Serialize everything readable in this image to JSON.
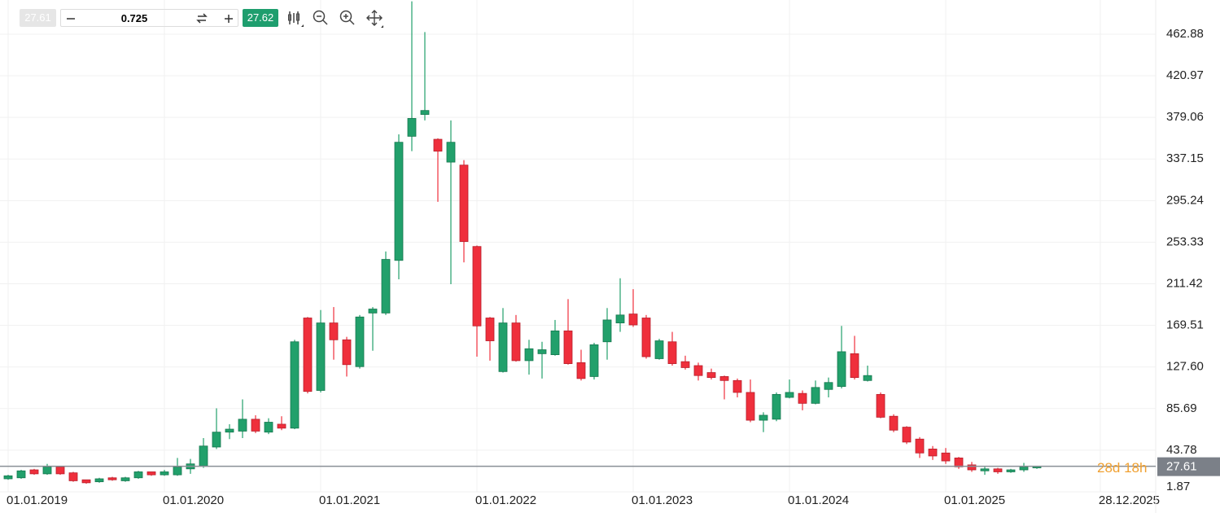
{
  "chart_data": {
    "type": "candlestick",
    "x": [
      "01.01.2019",
      "01.02.2019",
      "01.03.2019",
      "01.04.2019",
      "01.05.2019",
      "01.06.2019",
      "01.07.2019",
      "01.08.2019",
      "01.09.2019",
      "01.10.2019",
      "01.11.2019",
      "01.12.2019",
      "01.01.2020",
      "01.02.2020",
      "01.03.2020",
      "01.04.2020",
      "01.05.2020",
      "01.06.2020",
      "01.07.2020",
      "01.08.2020",
      "01.09.2020",
      "01.10.2020",
      "01.11.2020",
      "01.12.2020",
      "01.01.2021",
      "01.02.2021",
      "01.03.2021",
      "01.04.2021",
      "01.05.2021",
      "01.06.2021",
      "01.07.2021",
      "01.08.2021",
      "01.09.2021",
      "01.10.2021",
      "01.11.2021",
      "01.12.2021",
      "01.01.2022",
      "01.02.2022",
      "01.03.2022",
      "01.04.2022",
      "01.05.2022",
      "01.06.2022",
      "01.07.2022",
      "01.08.2022",
      "01.09.2022",
      "01.10.2022",
      "01.11.2022",
      "01.12.2022",
      "01.01.2023",
      "01.02.2023",
      "01.03.2023",
      "01.04.2023",
      "01.05.2023",
      "01.06.2023",
      "01.07.2023",
      "01.08.2023",
      "01.09.2023",
      "01.10.2023",
      "01.11.2023",
      "01.12.2023",
      "01.01.2024",
      "01.02.2024",
      "01.03.2024",
      "01.04.2024",
      "01.05.2024",
      "01.06.2024",
      "01.07.2024",
      "01.08.2024",
      "01.09.2024",
      "01.10.2024",
      "01.11.2024",
      "01.12.2024",
      "01.01.2025",
      "01.02.2025",
      "01.03.2025",
      "01.04.2025",
      "01.05.2025",
      "01.06.2025",
      "01.07.2025",
      "01.08.2025"
    ],
    "open": [
      15,
      16,
      24,
      20,
      27,
      21,
      14,
      12,
      16,
      13,
      16,
      22,
      19,
      19,
      25,
      28,
      47,
      62,
      63,
      75,
      62,
      70,
      66,
      177,
      104,
      172,
      155,
      128,
      182,
      182,
      235,
      360,
      382,
      357,
      334,
      331,
      249,
      177,
      123,
      172,
      134,
      141,
      140,
      164,
      132,
      118,
      153,
      172,
      181,
      177,
      136,
      153,
      133,
      129,
      122,
      118,
      114,
      102,
      74,
      75,
      97,
      101,
      91,
      105,
      108,
      141,
      114,
      100,
      78,
      67,
      55,
      45,
      41,
      36,
      29,
      23,
      25,
      22,
      24,
      26
    ],
    "high": [
      19,
      24,
      25,
      30,
      28,
      22,
      14,
      16,
      17,
      17,
      23,
      22,
      24,
      36,
      35,
      56,
      86,
      70,
      95,
      79,
      76,
      78,
      155,
      178,
      185,
      188,
      158,
      180,
      188,
      244,
      362,
      496,
      465,
      358,
      376,
      336,
      250,
      178,
      187,
      180,
      155,
      153,
      175,
      196,
      145,
      152,
      187,
      217,
      206,
      180,
      156,
      163,
      139,
      132,
      126,
      119,
      116,
      115,
      82,
      102,
      115,
      104,
      114,
      117,
      169,
      159,
      129,
      102,
      80,
      68,
      57,
      48,
      46,
      37,
      32,
      27,
      26,
      25,
      31,
      28
    ],
    "low": [
      14,
      15,
      19,
      19,
      19,
      12,
      10,
      11,
      13,
      12,
      15,
      18,
      18,
      18,
      20,
      26,
      45,
      55,
      56,
      61,
      60,
      64,
      65,
      101,
      102,
      135,
      118,
      126,
      144,
      180,
      216,
      345,
      376,
      294,
      211,
      233,
      138,
      134,
      122,
      133,
      120,
      116,
      139,
      130,
      114,
      115,
      135,
      163,
      168,
      136,
      135,
      129,
      125,
      114,
      115,
      95,
      97,
      72,
      62,
      73,
      96,
      84,
      90,
      97,
      106,
      115,
      113,
      76,
      62,
      50,
      36,
      34,
      30,
      25,
      22,
      19,
      20,
      21,
      22,
      25
    ],
    "close": [
      18,
      23,
      20,
      27,
      20,
      13,
      11,
      15,
      14,
      16,
      22,
      19,
      22,
      27,
      30,
      48,
      62,
      65,
      75,
      63,
      72,
      66,
      153,
      103,
      172,
      155,
      130,
      178,
      186,
      236,
      354,
      378,
      386,
      345,
      354,
      254,
      169,
      154,
      172,
      134,
      146,
      145,
      164,
      131,
      116,
      150,
      175,
      180,
      170,
      138,
      154,
      131,
      127,
      119,
      117,
      114,
      102,
      74,
      79,
      100,
      102,
      91,
      107,
      112,
      143,
      117,
      119,
      77,
      64,
      52,
      41,
      38,
      33,
      27,
      24,
      25,
      22,
      24,
      27,
      27.61
    ],
    "up_color": "#22a06b",
    "down_color": "#ef2f3c",
    "ylim": [
      1.87,
      497.3
    ],
    "yticks": [
      1.87,
      43.78,
      85.69,
      {
        "value": 127.6,
        "label": "127.60"
      },
      169.51,
      211.42,
      253.33,
      295.24,
      337.15,
      379.06,
      420.97,
      462.88
    ],
    "xlim": [
      "01.01.2019",
      "01.05.2026"
    ],
    "xticks": [
      "01.01.2019",
      "01.01.2020",
      "01.01.2021",
      "01.01.2022",
      "01.01.2023",
      "01.01.2024",
      "01.01.2025",
      "28.12.2025"
    ],
    "grid": true,
    "last_price": 27.61,
    "countdown": "28d 18h"
  },
  "toolbar": {
    "sell_price": "27.61",
    "quantity": "0.725",
    "buy_price": "27.62"
  }
}
